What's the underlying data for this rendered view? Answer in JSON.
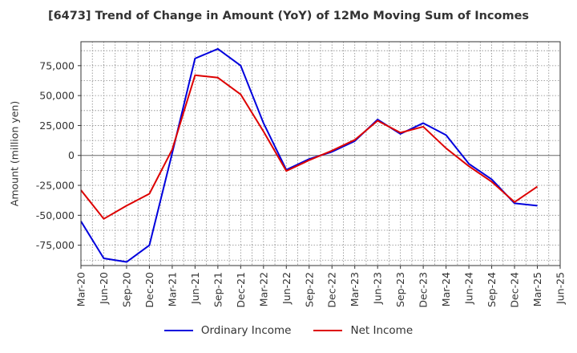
{
  "chart_data": {
    "type": "line",
    "title": "[6473]  Trend of Change in Amount (YoY) of 12Mo Moving Sum of Incomes",
    "ylabel": "Amount (million yen)",
    "xlabel": "",
    "ylim": [
      -92000,
      95000
    ],
    "yticks": [
      75000,
      50000,
      25000,
      0,
      -25000,
      -50000,
      -75000
    ],
    "ytick_labels": [
      "75,000",
      "50,000",
      "25,000",
      "0",
      "-25,000",
      "-50,000",
      "-75,000"
    ],
    "x": [
      "Mar-20",
      "Jun-20",
      "Sep-20",
      "Dec-20",
      "Mar-21",
      "Jun-21",
      "Sep-21",
      "Dec-21",
      "Mar-22",
      "Jun-22",
      "Sep-22",
      "Dec-22",
      "Mar-23",
      "Jun-23",
      "Sep-23",
      "Dec-23",
      "Mar-24",
      "Jun-24",
      "Sep-24",
      "Dec-24",
      "Mar-25",
      "Jun-25"
    ],
    "grid": true,
    "legend_position": "bottom",
    "series": [
      {
        "name": "Ordinary Income",
        "color": "#0000dd",
        "values": [
          -55000,
          -86000,
          -89000,
          -75000,
          2000,
          81000,
          89000,
          75000,
          27000,
          -12000,
          -3000,
          3000,
          12000,
          30000,
          18000,
          27000,
          17000,
          -7000,
          -20000,
          -40000,
          -42000,
          null
        ]
      },
      {
        "name": "Net Income",
        "color": "#dd0000",
        "values": [
          -29000,
          -53000,
          -42000,
          -32000,
          5000,
          67000,
          65000,
          51000,
          20000,
          -13000,
          -4000,
          4000,
          13000,
          29000,
          19000,
          24000,
          6000,
          -9000,
          -22000,
          -39000,
          -26000,
          null
        ]
      }
    ]
  }
}
